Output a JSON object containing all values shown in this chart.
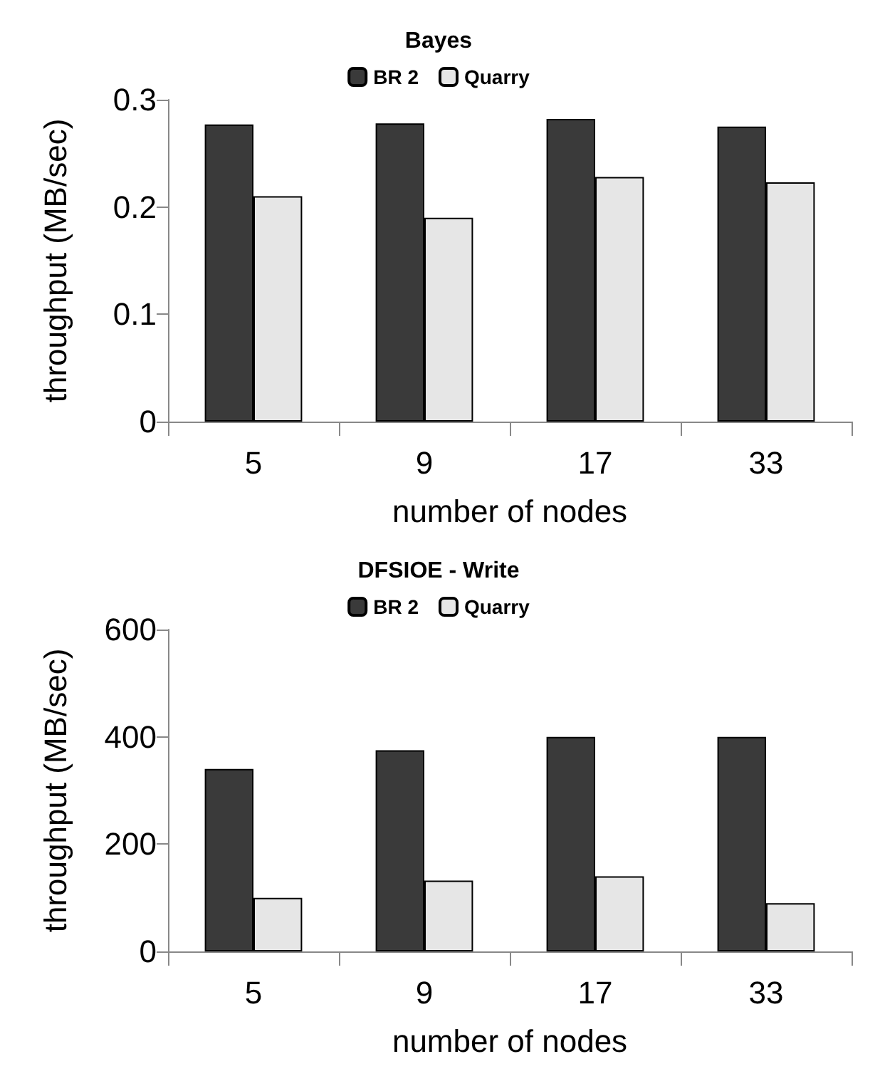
{
  "chart_data": [
    {
      "type": "bar",
      "title": "Bayes",
      "xlabel": "number of nodes",
      "ylabel": "throughput (MB/sec)",
      "categories": [
        "5",
        "9",
        "17",
        "33"
      ],
      "series": [
        {
          "name": "BR 2",
          "color": "#3a3a3a",
          "values": [
            0.277,
            0.278,
            0.282,
            0.275
          ]
        },
        {
          "name": "Quarry",
          "color": "#e6e6e6",
          "values": [
            0.21,
            0.19,
            0.228,
            0.223
          ]
        }
      ],
      "ylim": [
        0,
        0.3
      ],
      "yticks": [
        0,
        0.1,
        0.2,
        0.3
      ],
      "grid": false,
      "legend": "top"
    },
    {
      "type": "bar",
      "title": "DFSIOE - Write",
      "xlabel": "number of nodes",
      "ylabel": "throughput (MB/sec)",
      "categories": [
        "5",
        "9",
        "17",
        "33"
      ],
      "series": [
        {
          "name": "BR 2",
          "color": "#3a3a3a",
          "values": [
            340,
            375,
            400,
            400
          ]
        },
        {
          "name": "Quarry",
          "color": "#e6e6e6",
          "values": [
            100,
            132,
            140,
            90
          ]
        }
      ],
      "ylim": [
        0,
        600
      ],
      "yticks": [
        0,
        200,
        400,
        600
      ],
      "grid": false,
      "legend": "top"
    }
  ]
}
